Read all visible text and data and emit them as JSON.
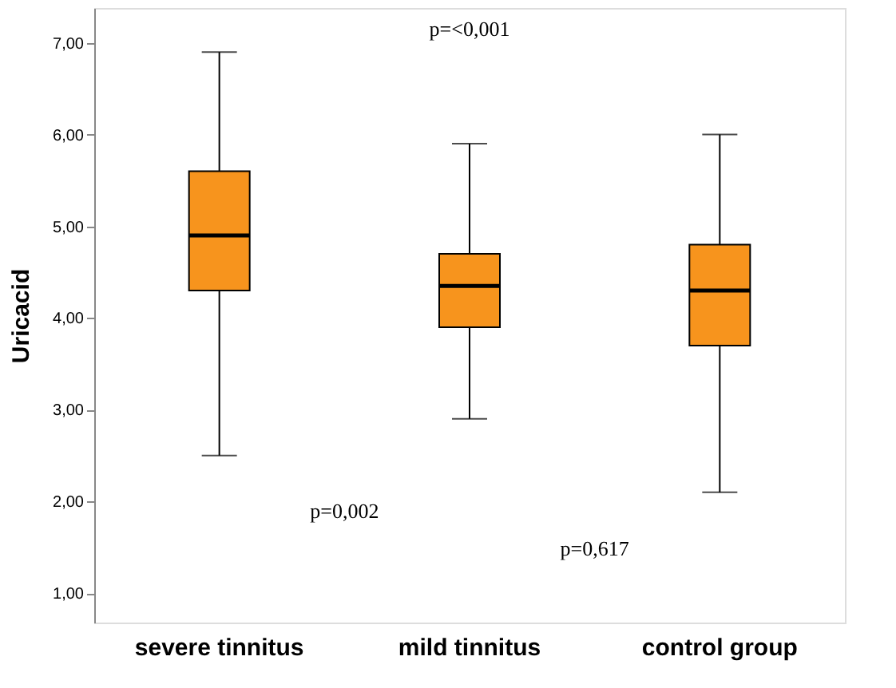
{
  "chart_data": {
    "type": "box",
    "ylabel": "Uricacid",
    "categories": [
      "severe tinnitus",
      "mild tinnitus",
      "control group"
    ],
    "series": [
      {
        "color": "#f7941d",
        "boxes": [
          {
            "low": 2.5,
            "q1": 4.3,
            "median": 4.9,
            "q3": 5.6,
            "high": 6.9
          },
          {
            "low": 2.9,
            "q1": 3.9,
            "median": 4.35,
            "q3": 4.7,
            "high": 5.9
          },
          {
            "low": 2.1,
            "q1": 3.7,
            "median": 4.3,
            "q3": 4.8,
            "high": 6.0
          }
        ]
      }
    ],
    "ylim": [
      0.68,
      7.38
    ],
    "yticks": [
      {
        "value": 1,
        "label": "1,00"
      },
      {
        "value": 2,
        "label": "2,00"
      },
      {
        "value": 3,
        "label": "3,00"
      },
      {
        "value": 4,
        "label": "4,00"
      },
      {
        "value": 5,
        "label": "5,00"
      },
      {
        "value": 6,
        "label": "6,00"
      },
      {
        "value": 7,
        "label": "7,00"
      }
    ],
    "grid": false,
    "annotations": [
      "p=<0,001",
      "p=0,002",
      "p=0,617"
    ]
  }
}
